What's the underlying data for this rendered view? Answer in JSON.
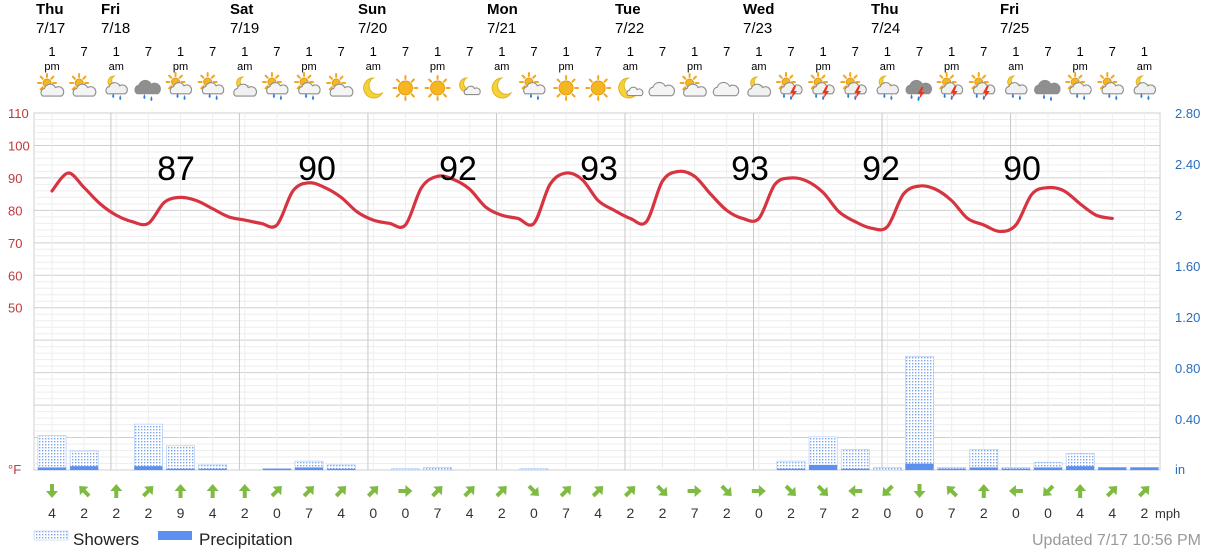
{
  "colors": {
    "temperature_line": "#d63441",
    "precipitation": "#5b8ff0",
    "showers": "#a9c4f2",
    "wind_arrow": "#7fba42",
    "left_axis": "#c0393b",
    "right_axis": "#2a6ebb",
    "updated_text": "#999999"
  },
  "days": [
    {
      "name": "Thu",
      "date": "7/17"
    },
    {
      "name": "Fri",
      "date": "7/18"
    },
    {
      "name": "Sat",
      "date": "7/19"
    },
    {
      "name": "Sun",
      "date": "7/20"
    },
    {
      "name": "Mon",
      "date": "7/21"
    },
    {
      "name": "Tue",
      "date": "7/22"
    },
    {
      "name": "Wed",
      "date": "7/23"
    },
    {
      "name": "Thu",
      "date": "7/24"
    },
    {
      "name": "Fri",
      "date": "7/25"
    }
  ],
  "time_labels": [
    {
      "num": "1",
      "ampm": "pm"
    },
    {
      "num": "7",
      "ampm": ""
    },
    {
      "num": "1",
      "ampm": "am"
    },
    {
      "num": "7",
      "ampm": ""
    },
    {
      "num": "1",
      "ampm": "pm"
    },
    {
      "num": "7",
      "ampm": ""
    },
    {
      "num": "1",
      "ampm": "am"
    },
    {
      "num": "7",
      "ampm": ""
    },
    {
      "num": "1",
      "ampm": "pm"
    },
    {
      "num": "7",
      "ampm": ""
    },
    {
      "num": "1",
      "ampm": "am"
    },
    {
      "num": "7",
      "ampm": ""
    },
    {
      "num": "1",
      "ampm": "pm"
    },
    {
      "num": "7",
      "ampm": ""
    },
    {
      "num": "1",
      "ampm": "am"
    },
    {
      "num": "7",
      "ampm": ""
    },
    {
      "num": "1",
      "ampm": "pm"
    },
    {
      "num": "7",
      "ampm": ""
    },
    {
      "num": "1",
      "ampm": "am"
    },
    {
      "num": "7",
      "ampm": ""
    },
    {
      "num": "1",
      "ampm": "pm"
    },
    {
      "num": "7",
      "ampm": ""
    },
    {
      "num": "1",
      "ampm": "am"
    },
    {
      "num": "7",
      "ampm": ""
    },
    {
      "num": "1",
      "ampm": "pm"
    },
    {
      "num": "7",
      "ampm": ""
    },
    {
      "num": "1",
      "ampm": "am"
    },
    {
      "num": "7",
      "ampm": ""
    },
    {
      "num": "1",
      "ampm": "pm"
    },
    {
      "num": "7",
      "ampm": ""
    },
    {
      "num": "1",
      "ampm": "am"
    },
    {
      "num": "7",
      "ampm": ""
    },
    {
      "num": "1",
      "ampm": "pm"
    },
    {
      "num": "7",
      "ampm": ""
    },
    {
      "num": "1",
      "ampm": "am"
    }
  ],
  "weather_icons": [
    "partly-cloudy-day-icon",
    "partly-cloudy-day-icon",
    "night-cloudy-showers-icon",
    "heavy-rain-cloud-icon",
    "partly-cloudy-showers-icon",
    "partly-cloudy-showers-icon",
    "night-cloudy-icon",
    "partly-cloudy-showers-icon",
    "partly-cloudy-showers-icon",
    "partly-cloudy-day-icon",
    "moon-icon",
    "sun-icon",
    "sun-icon",
    "partly-cloudy-night-icon",
    "moon-icon",
    "partly-cloudy-showers-icon",
    "sun-icon",
    "sun-icon",
    "moon-cloud-icon",
    "cloud-icon",
    "partly-cloudy-day-icon",
    "cloud-icon",
    "night-cloudy-icon",
    "thunderstorm-icon",
    "thunderstorm-icon",
    "thunderstorm-icon",
    "night-cloudy-showers-icon",
    "heavy-thunderstorm-icon",
    "thunderstorm-icon",
    "thunderstorm-icon",
    "night-cloudy-showers-icon",
    "heavy-rain-cloud-icon",
    "partly-cloudy-showers-icon",
    "partly-cloudy-showers-icon",
    "night-cloudy-showers-icon"
  ],
  "chart_data": {
    "type": "line",
    "x_unit": "hours from Thu 7/17 1 pm",
    "left_axis": {
      "unit": "°F",
      "range": [
        0,
        110
      ],
      "ticks": [
        110,
        100,
        90,
        80,
        70,
        60,
        50
      ]
    },
    "right_axis": {
      "unit": "in",
      "range": [
        0,
        2.8
      ],
      "ticks": [
        "2.80",
        "2.40",
        "2",
        "1.60",
        "1.20",
        "0.80",
        "0.40"
      ]
    },
    "daily_highs": [
      87,
      90,
      92,
      93,
      93,
      92,
      90
    ],
    "temperature_series": {
      "name": "",
      "points": [
        [
          0,
          86
        ],
        [
          3,
          91.5
        ],
        [
          6,
          87
        ],
        [
          9,
          82
        ],
        [
          12,
          78.5
        ],
        [
          15,
          76.5
        ],
        [
          18,
          76
        ],
        [
          21,
          82.5
        ],
        [
          24,
          84
        ],
        [
          27,
          83
        ],
        [
          30,
          80.5
        ],
        [
          33,
          78
        ],
        [
          36,
          77
        ],
        [
          39,
          76
        ],
        [
          42,
          75.5
        ],
        [
          45,
          86
        ],
        [
          48,
          88.5
        ],
        [
          51,
          87
        ],
        [
          54,
          84
        ],
        [
          57,
          79.5
        ],
        [
          60,
          77
        ],
        [
          63,
          76
        ],
        [
          66,
          75.5
        ],
        [
          69,
          87
        ],
        [
          72,
          90.5
        ],
        [
          75,
          89.5
        ],
        [
          78,
          86.5
        ],
        [
          81,
          81
        ],
        [
          84,
          78.5
        ],
        [
          87,
          77.5
        ],
        [
          90,
          76
        ],
        [
          93,
          88
        ],
        [
          96,
          91.5
        ],
        [
          99,
          89.5
        ],
        [
          102,
          83
        ],
        [
          105,
          80
        ],
        [
          108,
          77.5
        ],
        [
          111,
          76.5
        ],
        [
          114,
          89
        ],
        [
          117,
          92
        ],
        [
          120,
          90.5
        ],
        [
          123,
          85
        ],
        [
          126,
          80
        ],
        [
          129,
          77.5
        ],
        [
          132,
          77.5
        ],
        [
          135,
          88
        ],
        [
          138,
          90
        ],
        [
          141,
          89
        ],
        [
          144,
          85.5
        ],
        [
          147,
          79.5
        ],
        [
          150,
          76.5
        ],
        [
          153,
          74.5
        ],
        [
          156,
          75
        ],
        [
          159,
          85
        ],
        [
          162,
          87.5
        ],
        [
          165,
          86.5
        ],
        [
          168,
          83
        ],
        [
          171,
          77.5
        ],
        [
          174,
          75.5
        ],
        [
          177,
          73.5
        ],
        [
          180,
          75.5
        ],
        [
          183,
          85
        ],
        [
          186,
          87
        ],
        [
          189,
          86
        ],
        [
          192,
          82
        ],
        [
          195,
          78.5
        ],
        [
          198,
          77.5
        ]
      ]
    },
    "showers_in": [
      0.27,
      0.15,
      0,
      0.36,
      0.19,
      0.04,
      0,
      0.01,
      0.07,
      0.04,
      0,
      0.01,
      0.02,
      0,
      0,
      0.01,
      0,
      0,
      0,
      0,
      0,
      0,
      0,
      0.07,
      0.26,
      0.16,
      0.02,
      0.89,
      0.02,
      0.16,
      0.02,
      0.06,
      0.13,
      0.02,
      0.02
    ],
    "precipitation_in": [
      0.02,
      0.03,
      0,
      0.03,
      0.01,
      0.01,
      0,
      0.01,
      0.02,
      0.01,
      0,
      0,
      0,
      0,
      0,
      0,
      0,
      0,
      0,
      0,
      0,
      0,
      0,
      0.01,
      0.04,
      0.01,
      0,
      0.05,
      0.01,
      0.02,
      0.01,
      0.02,
      0.03,
      0.02,
      0.02
    ],
    "wind_mph": [
      "4",
      "2",
      "2",
      "2",
      "9",
      "4",
      "2",
      "0",
      "7",
      "4",
      "0",
      "0",
      "7",
      "4",
      "2",
      "0",
      "7",
      "4",
      "2",
      "2",
      "7",
      "2",
      "0",
      "2",
      "7",
      "2",
      "0",
      "0",
      "7",
      "2",
      "0",
      "0",
      "4",
      "4",
      "2"
    ],
    "wind_direction_deg": [
      180,
      315,
      0,
      45,
      0,
      0,
      0,
      45,
      45,
      45,
      45,
      90,
      45,
      45,
      45,
      135,
      45,
      45,
      45,
      135,
      90,
      135,
      90,
      135,
      135,
      270,
      225,
      180,
      315,
      0,
      270,
      225,
      0,
      45,
      45
    ],
    "wind_unit": "mph",
    "legend": [
      {
        "name": "Showers",
        "style": "dotted"
      },
      {
        "name": "Precipitation",
        "style": "solid"
      }
    ],
    "legend_position": "bottom-left",
    "grid": true
  },
  "updated_text": "Updated 7/17 10:56 PM"
}
